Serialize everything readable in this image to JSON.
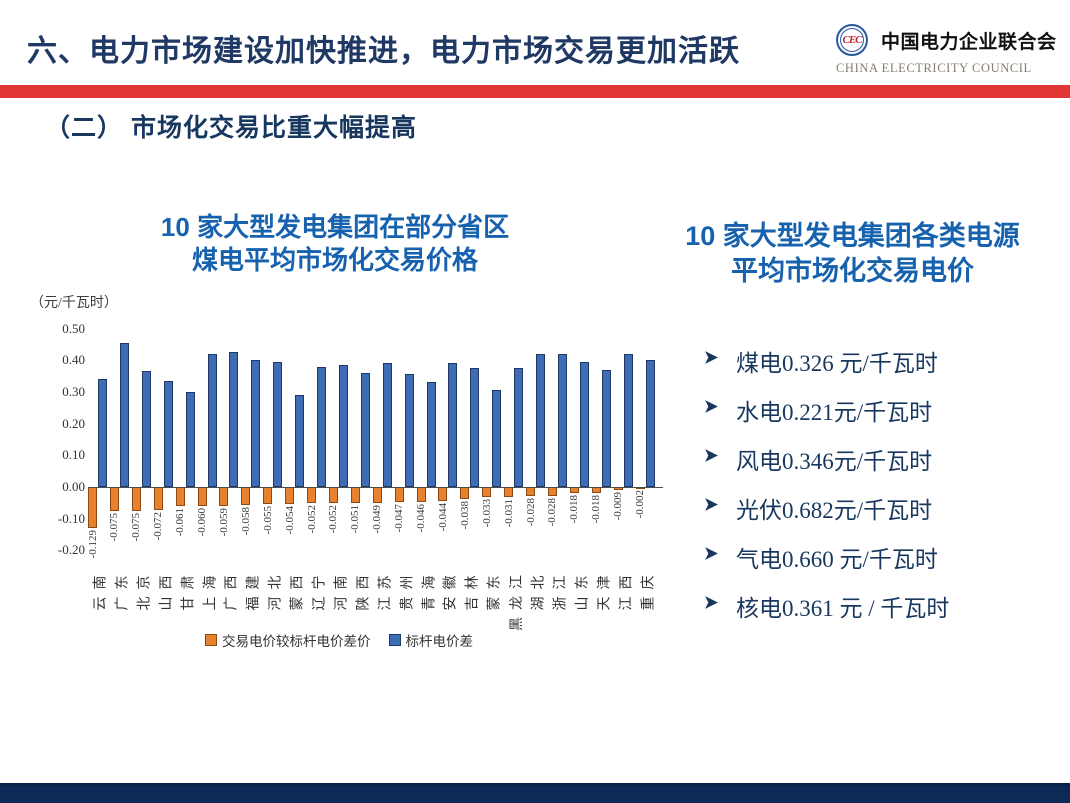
{
  "slide": {
    "header": {
      "title": "六、电力市场建设加快推进，电力市场交易更加活跃"
    },
    "logo": {
      "monogram": "CEC",
      "name_cn": "中国电力企业联合会",
      "name_en": "CHINA ELECTRICITY COUNCIL"
    },
    "section_title": "（二） 市场化交易比重大幅提高",
    "colors": {
      "accent_red": "#E23535",
      "heading_navy": "#1F3864",
      "section_navy": "#17375E",
      "title_blue": "#1762AE",
      "bar_blue": "#3F6DB5",
      "bar_orange": "#E8812D",
      "footer_navy": "#0D2A56"
    }
  },
  "chart_data": {
    "type": "bar",
    "title": "10 家大型发电集团在部分省区煤电平均市场化交易价格",
    "title_lines": [
      "10 家大型发电集团在部分省区",
      "煤电平均市场化交易价格"
    ],
    "unit_label": "（元/千瓦时）",
    "xlabel": "",
    "ylabel": "元/千瓦时",
    "ylim": [
      -0.2,
      0.5
    ],
    "y_ticks": [
      0.5,
      0.4,
      0.3,
      0.2,
      0.1,
      0.0,
      -0.1,
      -0.2
    ],
    "grid": false,
    "legend_position": "bottom",
    "categories": [
      "云南",
      "广东",
      "北京",
      "山西",
      "甘肃",
      "上海",
      "广西",
      "福建",
      "河北",
      "蒙西",
      "辽宁",
      "河南",
      "陕西",
      "江苏",
      "贵州",
      "青海",
      "安徽",
      "吉林",
      "蒙东",
      "黑龙江",
      "湖北",
      "浙江",
      "山东",
      "天津",
      "江西",
      "重庆"
    ],
    "series": [
      {
        "name": "交易电价较标杆电价差价",
        "color": "#E8812D",
        "values": [
          -0.129,
          -0.075,
          -0.075,
          -0.072,
          -0.061,
          -0.06,
          -0.059,
          -0.058,
          -0.055,
          -0.054,
          -0.052,
          -0.052,
          -0.051,
          -0.049,
          -0.047,
          -0.046,
          -0.044,
          -0.038,
          -0.033,
          -0.031,
          -0.028,
          -0.028,
          -0.018,
          -0.018,
          -0.009,
          -0.002
        ],
        "labels_visible": true
      },
      {
        "name": "标杆电价差",
        "color": "#3F6DB5",
        "values": [
          0.34,
          0.455,
          0.365,
          0.335,
          0.3,
          0.42,
          0.425,
          0.4,
          0.395,
          0.29,
          0.38,
          0.385,
          0.36,
          0.39,
          0.355,
          0.33,
          0.39,
          0.375,
          0.305,
          0.375,
          0.42,
          0.42,
          0.395,
          0.37,
          0.42,
          0.4
        ],
        "labels_visible": false
      }
    ]
  },
  "right_panel": {
    "title_lines": [
      "10 家大型发电集团各类电源",
      "平均市场化交易电价"
    ],
    "bullets": [
      "煤电0.326 元/千瓦时",
      "水电0.221元/千瓦时",
      "风电0.346元/千瓦时",
      "光伏0.682元/千瓦时",
      "气电0.660 元/千瓦时",
      "核电0.361 元 / 千瓦时"
    ]
  }
}
